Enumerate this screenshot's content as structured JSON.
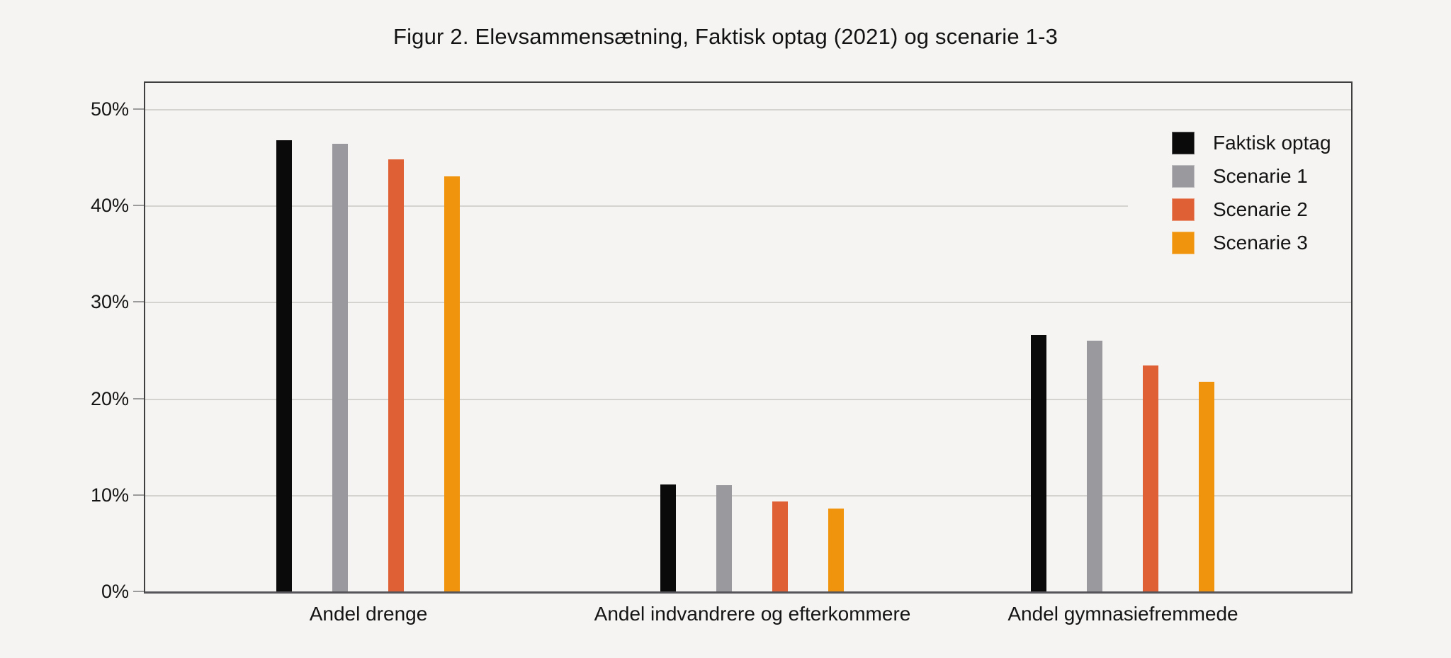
{
  "figure": {
    "background": "#f5f4f2"
  },
  "chart_data": {
    "type": "bar",
    "title": "Figur 2. Elevsammensætning, Faktisk optag (2021) og scenarie 1-3",
    "categories": [
      "Andel drenge",
      "Andel indvandrere og efterkommere",
      "Andel gymnasiefremmede"
    ],
    "series": [
      {
        "name": "Faktisk optag",
        "color": "#0a0a0a",
        "values": [
          46.8,
          11.1,
          26.6
        ]
      },
      {
        "name": "Scenarie 1",
        "color": "#9a999d",
        "values": [
          46.4,
          11.0,
          26.0
        ]
      },
      {
        "name": "Scenarie 2",
        "color": "#e06036",
        "values": [
          44.8,
          9.3,
          23.4
        ]
      },
      {
        "name": "Scenarie 3",
        "color": "#f0940e",
        "values": [
          43.0,
          8.6,
          21.7
        ]
      }
    ],
    "y_ticks": [
      "0%",
      "10%",
      "20%",
      "30%",
      "40%",
      "50%"
    ],
    "y_tick_values": [
      0,
      10,
      20,
      30,
      40,
      50
    ],
    "xlabel": "",
    "ylabel": "",
    "ylim": [
      0,
      52.9
    ],
    "grid": true,
    "legend_position": "inside-top-right",
    "colors": {
      "grid_line": "#d4d3d0",
      "frame": "#3f3f3f",
      "axis_line": "#55555a",
      "tick_mark": "#9b9b9b"
    }
  }
}
